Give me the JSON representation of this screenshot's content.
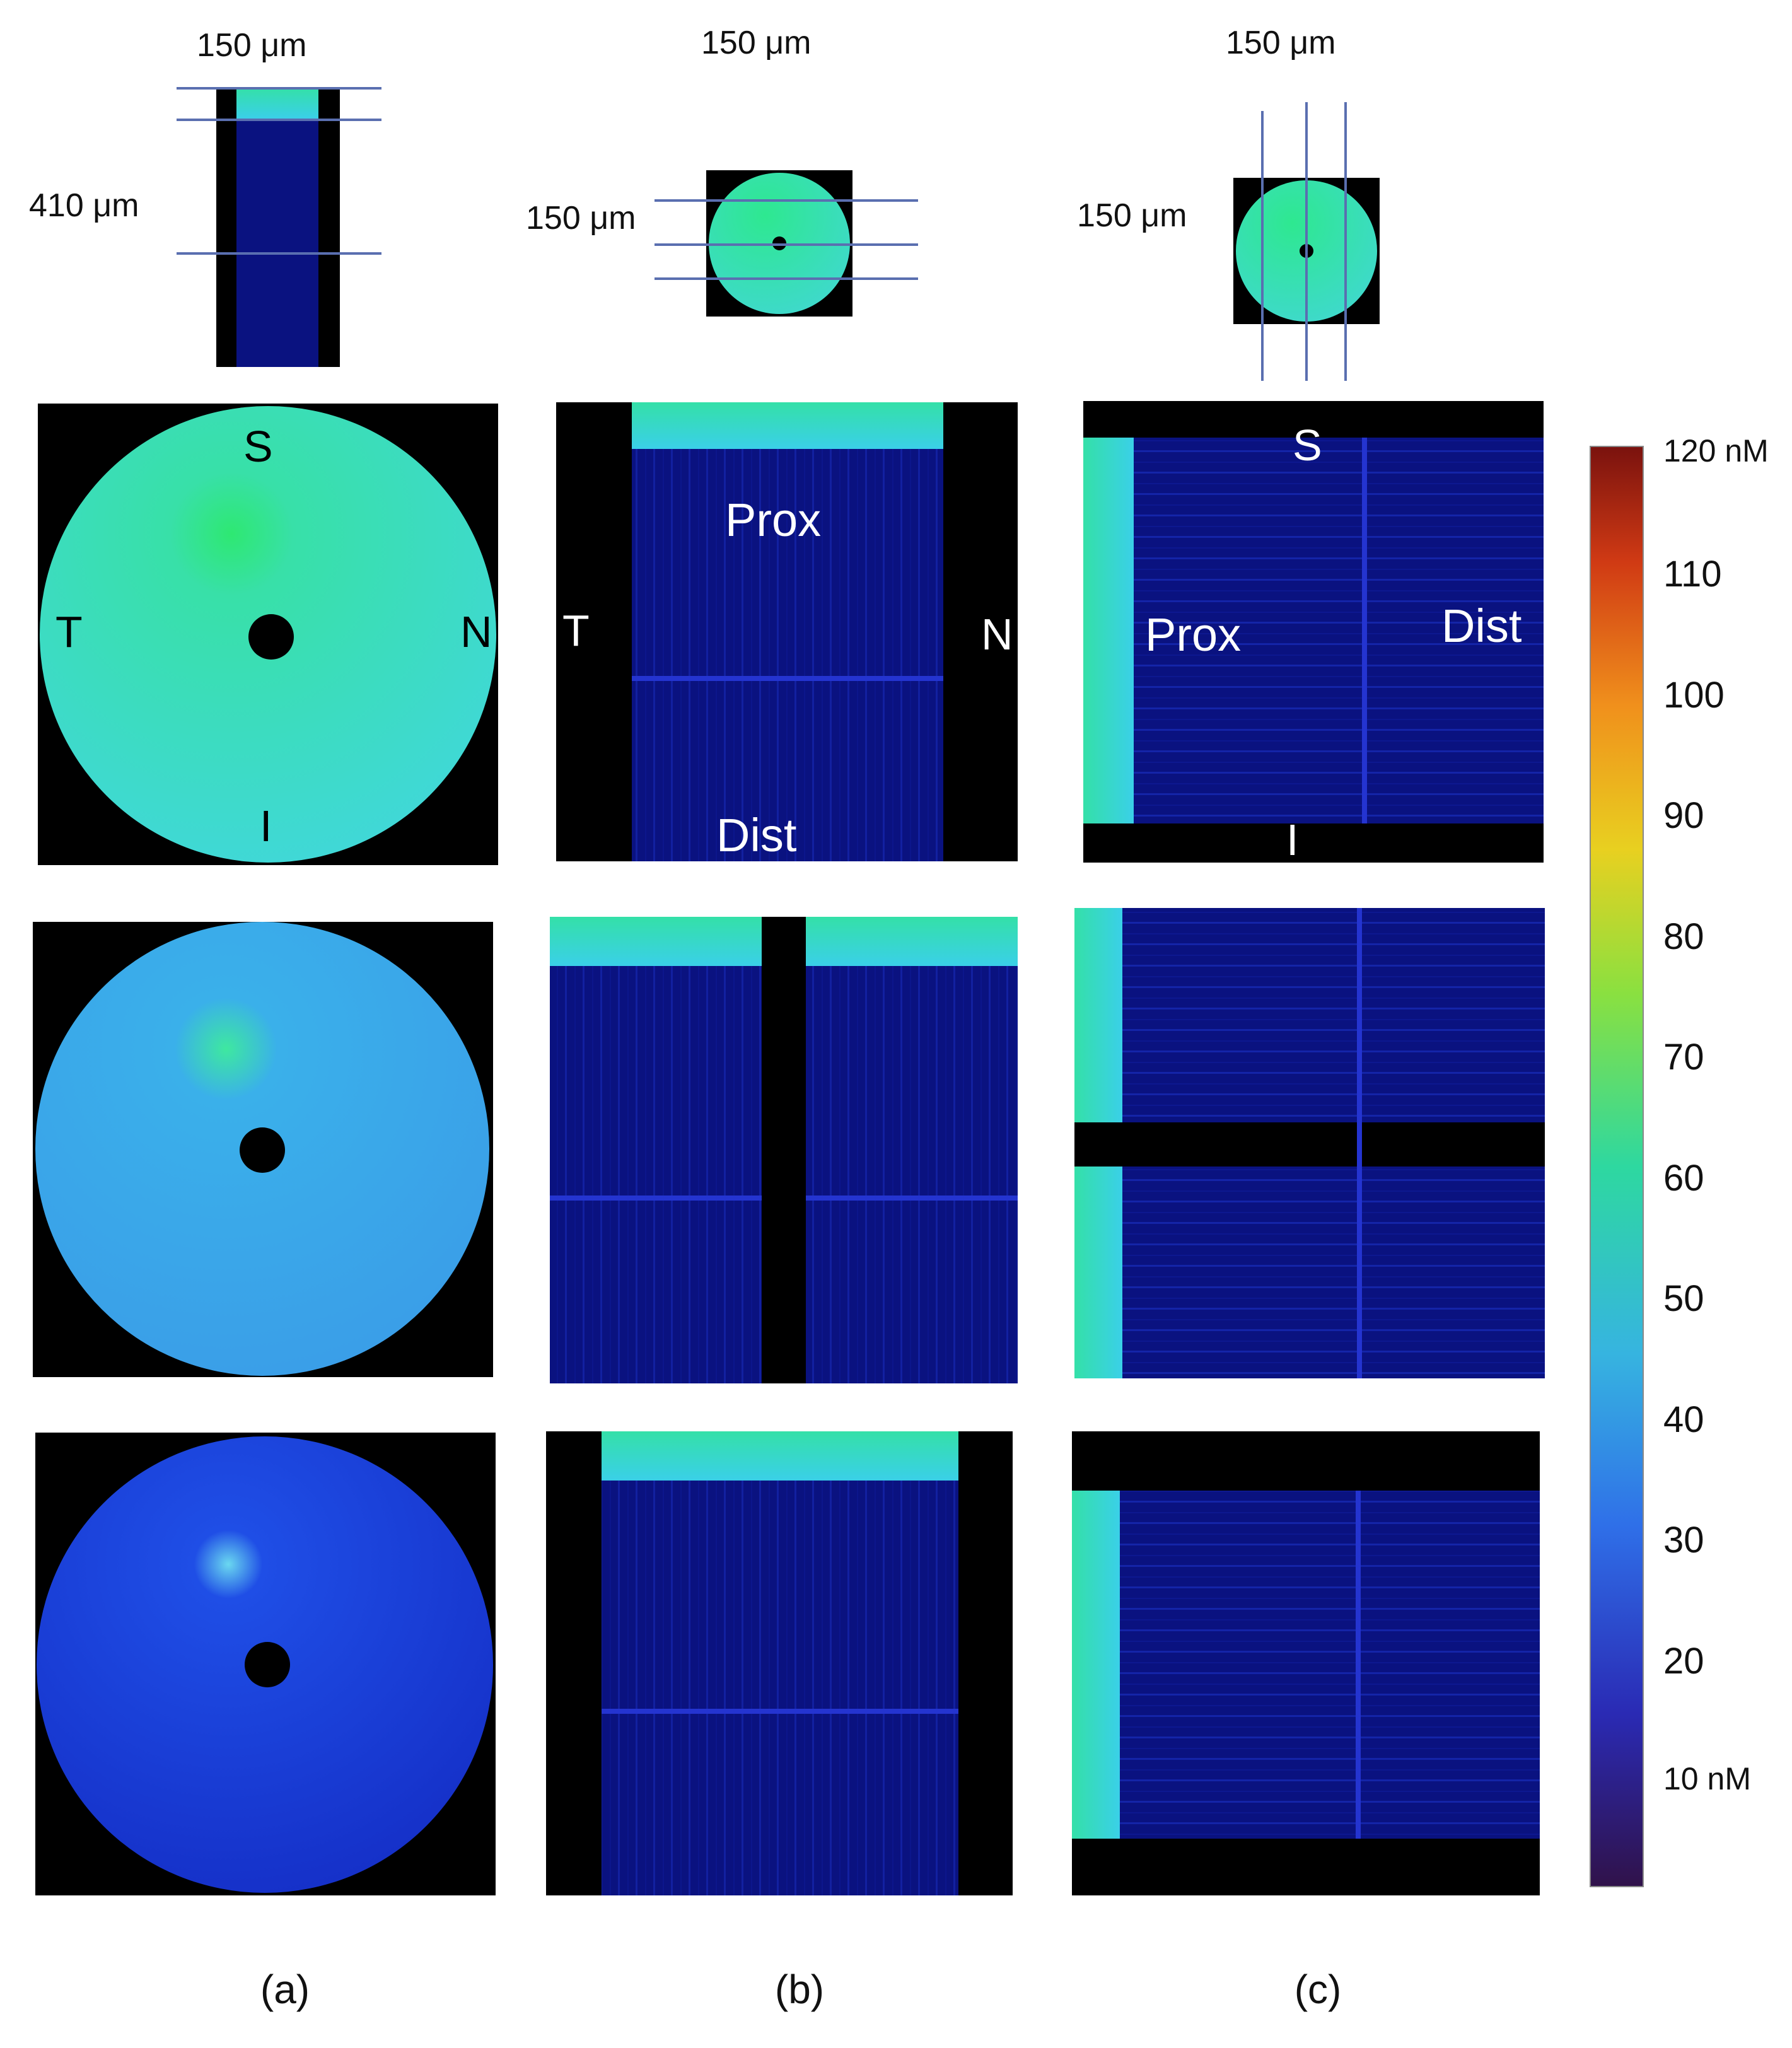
{
  "top_labels": {
    "a_width": "150 μm",
    "a_height": "410 μm",
    "b_width": "150 μm",
    "b_height": "150 μm",
    "c_width": "150 μm",
    "c_height": "150 μm"
  },
  "panel_a": {
    "superior": "S",
    "temporal": "T",
    "nasal": "N",
    "inferior": "I"
  },
  "panel_b": {
    "temporal": "T",
    "nasal": "N",
    "proximal": "Prox",
    "distal": "Dist"
  },
  "panel_c": {
    "superior": "S",
    "inferior": "I",
    "proximal": "Prox",
    "distal": "Dist"
  },
  "captions": {
    "a": "(a)",
    "b": "(b)",
    "c": "(c)"
  },
  "colorbar": {
    "ticks": [
      "120 nM",
      "110",
      "100",
      "90",
      "80",
      "70",
      "60",
      "50",
      "40",
      "30",
      "20",
      "10 nM"
    ],
    "min_nM": 0,
    "max_nM": 120,
    "colormap": "jet"
  },
  "colors": {
    "background": "#000000",
    "tissue_high": "#2ee89a",
    "tissue_mid": "#3ecbe6",
    "tissue_low": "#1a3ee0",
    "deep_channel": "#0a0f6e",
    "grid_line": "#5a6fb0"
  }
}
